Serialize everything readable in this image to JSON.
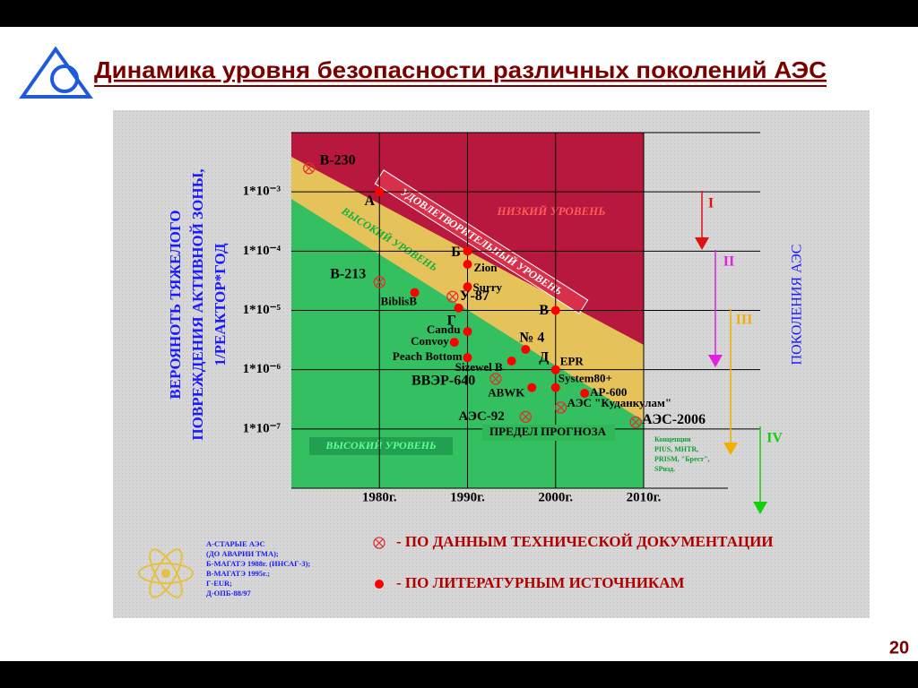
{
  "header": {
    "title": "Динамика уровня безопасности различных поколений АЭС",
    "page_number": "20"
  },
  "chart_data": {
    "type": "scatter",
    "y_label": [
      "ВЕРОЯНОТЬ ТЯЖЕЛОГО",
      "ПОВРЕЖДЕНИЯ АКТИВНОЙ ЗОНЫ,",
      "1/РЕАКТОР*ГОД"
    ],
    "xlim": [
      1970,
      2010
    ],
    "xticks": [
      {
        "value": 1980,
        "label": "1980г."
      },
      {
        "value": 1990,
        "label": "1990г."
      },
      {
        "value": 2000,
        "label": "2000г."
      },
      {
        "value": 2010,
        "label": "2010г."
      }
    ],
    "ylim": [
      1e-08,
      0.01
    ],
    "y_scale": "log",
    "yticks": [
      {
        "value": 0.001,
        "label": "1*10⁻³"
      },
      {
        "value": 0.0001,
        "label": "1*10⁻⁴"
      },
      {
        "value": 1e-05,
        "label": "1*10⁻⁵"
      },
      {
        "value": 1e-06,
        "label": "1*10⁻⁶"
      },
      {
        "value": 1e-07,
        "label": "1*10⁻⁷"
      }
    ],
    "grid": true,
    "series": [
      {
        "name": "- ПО ДАННЫМ ТЕХНИЧЕСКОЙ ДОКУМЕНТАЦИИ",
        "color": "#e03030",
        "marker": "crossed-circle",
        "labels": [
          "В-230",
          "В-213",
          "У-87",
          "ВВЭР-640",
          "АЭС-92",
          "АЭС \"Куданкулам\"",
          "АЭС-2006"
        ],
        "x": [
          1972,
          1980,
          1988.3,
          1993.2,
          1996.6,
          2000.6,
          2009.1
        ],
        "values": [
          0.0025,
          3e-05,
          1.7e-05,
          7e-07,
          1.6e-07,
          2.3e-07,
          1.3e-07
        ]
      },
      {
        "name": "- ПО ЛИТЕРАТУРНЫМ ИСТОЧНИКАМ",
        "color": "#ff0000",
        "marker": "dot",
        "labels": [
          "А",
          "Б",
          "В",
          "Zion",
          "Surry",
          "BiblisB",
          "Г",
          "Candu",
          "Convoy",
          "Peach Bottom",
          "№ 4",
          "Sizewel B",
          "Д",
          "EPR",
          "System80+",
          "ABWK",
          "AP-600"
        ],
        "x": [
          1980,
          1990,
          2000,
          1990,
          1990,
          1984,
          1989,
          1990,
          1988.5,
          1990,
          1996.6,
          1995,
          2000,
          2000,
          2000,
          1997.3,
          2003.3
        ],
        "values": [
          0.001,
          0.0001,
          1e-05,
          6e-05,
          2.5e-05,
          2e-05,
          1.1e-05,
          4.4e-06,
          2.9e-06,
          1.6e-06,
          2.2e-06,
          1.4e-06,
          1e-06,
          1e-06,
          5e-07,
          5e-07,
          4e-07
        ]
      }
    ],
    "regions": [
      {
        "label": "НИЗКИЙ УРОВЕНЬ",
        "color": "#b8183e"
      },
      {
        "label": "УДОВЛЕТВОРИТЕЛЬНЫЙ УРОВЕНЬ",
        "color": "#d8304a"
      },
      {
        "label": "ВЫСОКИЙ УРОВЕНЬ",
        "color": "#e6c25a"
      },
      {
        "label": "ВЫСОКИЙ УРОВЕНЬ",
        "color": "#34c060"
      }
    ],
    "annotations": [
      "ПРЕДЕЛ ПРОГНОЗА"
    ],
    "generations_label": "ПОКОЛЕНИЯ АЭС",
    "generations": [
      {
        "label": "I",
        "color": "#e01010"
      },
      {
        "label": "II",
        "color": "#e020e0"
      },
      {
        "label": "III",
        "color": "#f0b000"
      },
      {
        "label": "IV",
        "color": "#10d010"
      }
    ],
    "concepts": [
      "Концепции",
      "PIUS, MHTR,",
      "PRISM, \"Брест\",",
      "SPизд."
    ]
  },
  "notes": [
    "А-СТАРЫЕ АЭС",
    "(ДО АВАРИИ ТМА);",
    "Б-МАГАТЭ 1988г. (ИНСАГ-3);",
    "В-МАГАТЭ 1995г.;",
    "Г-EUR;",
    "Д-ОПБ-88/97"
  ]
}
